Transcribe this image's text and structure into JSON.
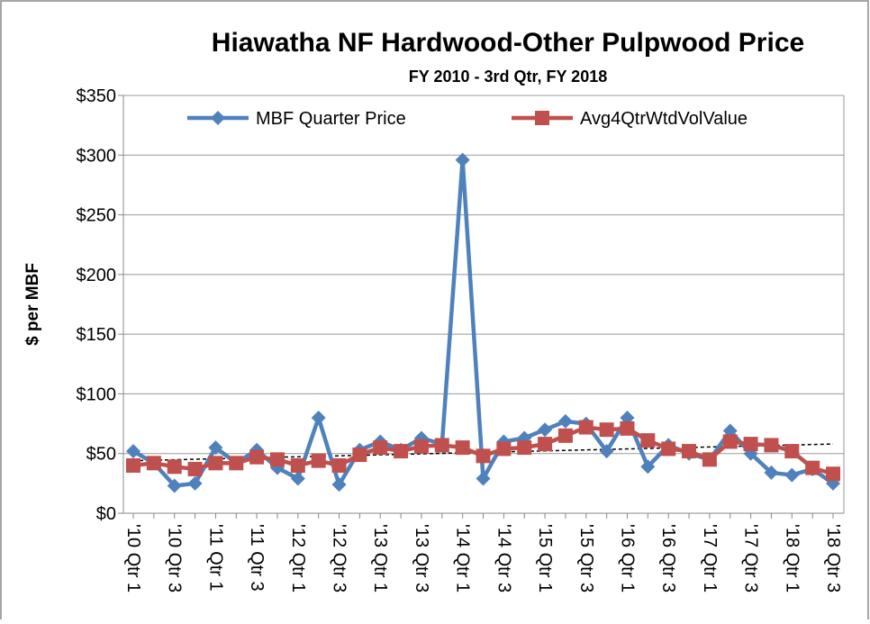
{
  "chart_data": {
    "type": "line",
    "title": "Hiawatha NF Hardwood-Other Pulpwood Price",
    "subtitle": "FY 2010 - 3rd Qtr, FY 2018",
    "y_label": "$ per MBF",
    "categories": [
      "'10 Qtr 1",
      null,
      "'10 Qtr 3",
      null,
      "'11 Qtr 1",
      null,
      "'11 Qtr 3",
      null,
      "'12 Qtr 1",
      null,
      "'12 Qtr 3",
      null,
      "'13 Qtr 1",
      null,
      "'13 Qtr 3",
      null,
      "'14 Qtr 1",
      null,
      "'14 Qtr 3",
      null,
      "'15 Qtr 1",
      null,
      "'15 Qtr 3",
      null,
      "'16 Qtr 1",
      null,
      "'16 Qtr 3",
      null,
      "'17 Qtr 1",
      null,
      "'17 Qtr 3",
      null,
      "'18 Qtr 1",
      null,
      "'18 Qtr 3"
    ],
    "series": [
      {
        "name": "MBF Quarter Price",
        "color": "#4f81bd",
        "marker": "diamond",
        "values": [
          52,
          42,
          23,
          25,
          55,
          42,
          53,
          38,
          29,
          80,
          24,
          53,
          60,
          53,
          63,
          58,
          296,
          29,
          60,
          63,
          70,
          77,
          75,
          52,
          80,
          39,
          57,
          50,
          45,
          69,
          50,
          34,
          32,
          37,
          25
        ]
      },
      {
        "name": "Avg4QtrWtdVolValue",
        "color": "#c0504d",
        "marker": "square",
        "values": [
          40,
          42,
          39,
          37,
          42,
          42,
          47,
          45,
          40,
          44,
          40,
          49,
          55,
          52,
          56,
          57,
          55,
          48,
          54,
          55,
          58,
          65,
          72,
          70,
          71,
          61,
          54,
          52,
          45,
          60,
          58,
          57,
          52,
          38,
          33
        ]
      }
    ],
    "trendline": [
      44,
      58
    ],
    "ylim": [
      0,
      350
    ],
    "yticks": [
      {
        "value": 0,
        "label": "$0"
      },
      {
        "value": 50,
        "label": "$50"
      },
      {
        "value": 100,
        "label": "$100"
      },
      {
        "value": 150,
        "label": "$150"
      },
      {
        "value": 200,
        "label": "$200"
      },
      {
        "value": 250,
        "label": "$250"
      },
      {
        "value": 300,
        "label": "$300"
      },
      {
        "value": 350,
        "label": "$350"
      }
    ],
    "grid": true,
    "legend": "top"
  }
}
